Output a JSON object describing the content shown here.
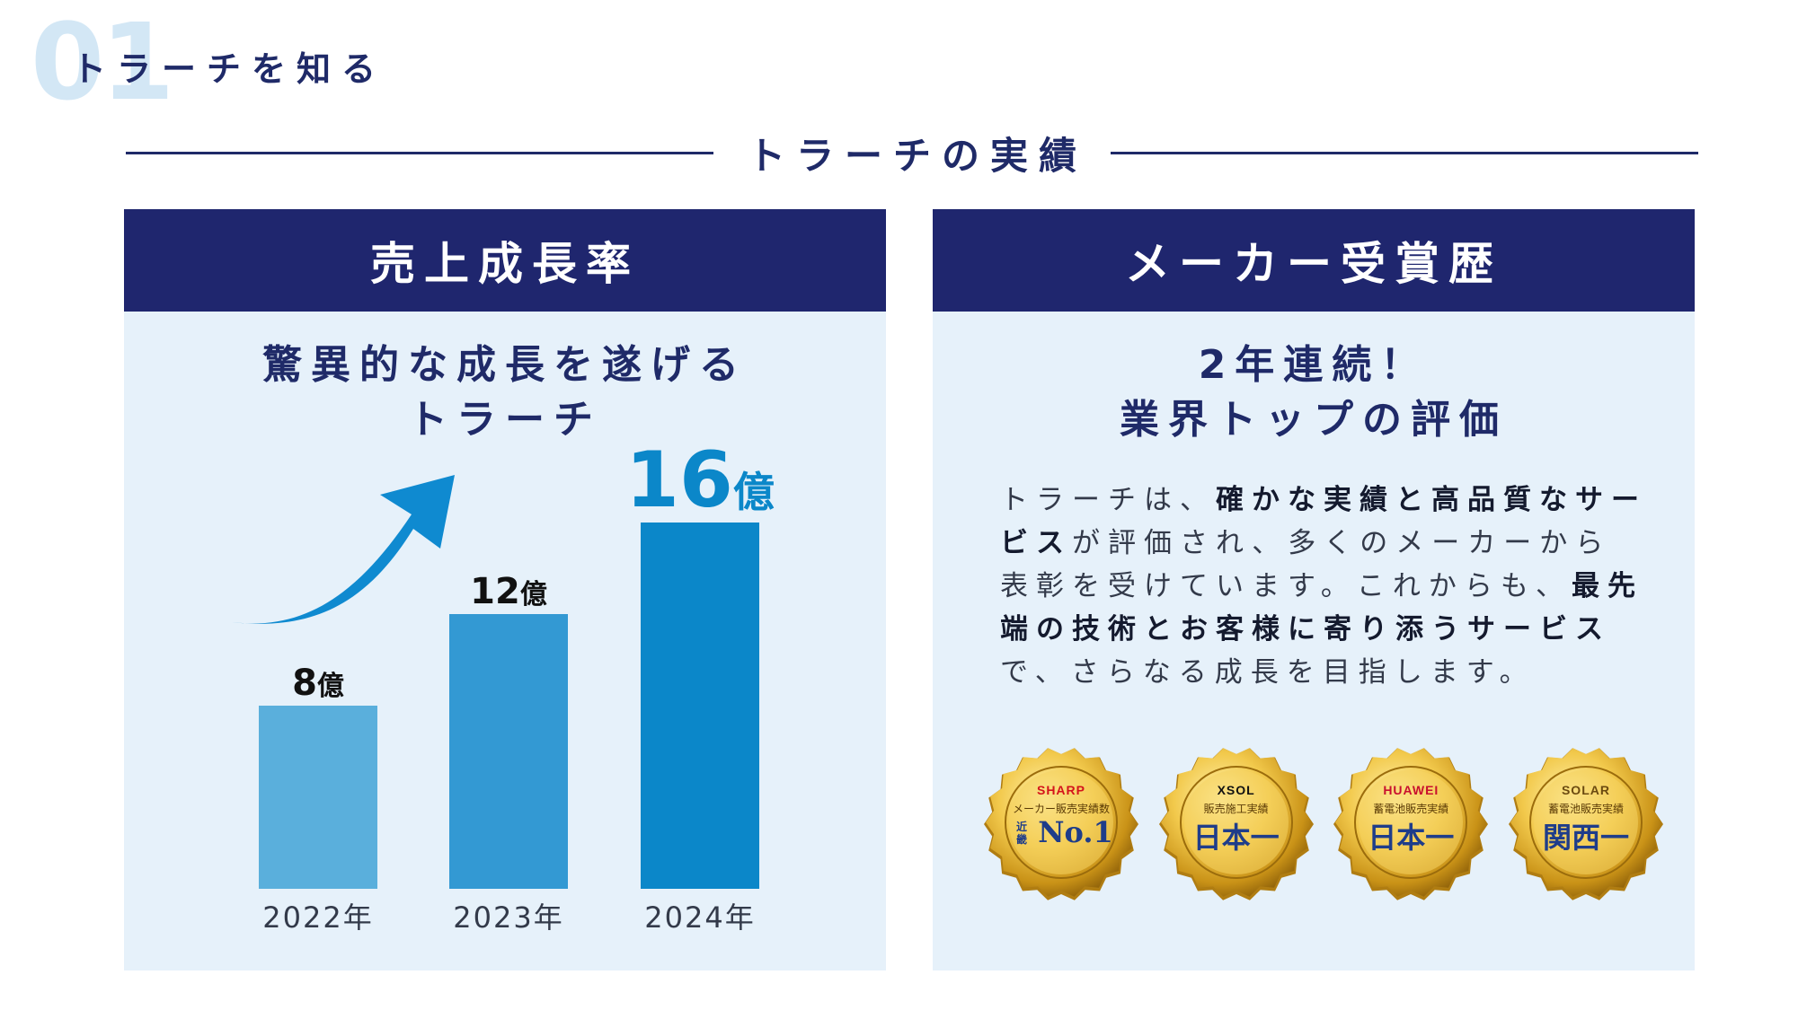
{
  "section": {
    "number": "01",
    "title": "トラーチを知る"
  },
  "main_heading": "トラーチの実績",
  "left_panel": {
    "title": "売上成長率",
    "subtitle_line1": "驚異的な成長を遂げる",
    "subtitle_line2": "トラーチ"
  },
  "chart_data": {
    "type": "bar",
    "categories": [
      "2022年",
      "2023年",
      "2024年"
    ],
    "values": [
      8,
      12,
      16
    ],
    "value_labels": [
      {
        "num": "8",
        "unit": "億"
      },
      {
        "num": "12",
        "unit": "億"
      },
      {
        "num": "16",
        "unit": "億"
      }
    ],
    "colors": [
      "#5aafdc",
      "#3399d3",
      "#0b87c9"
    ],
    "arrow_color": "#0f8ad0",
    "title": "",
    "xlabel": "",
    "ylabel": "",
    "ylim": [
      0,
      16
    ]
  },
  "right_panel": {
    "title": "メーカー受賞歴",
    "subtitle_line1": "2年連続！",
    "subtitle_line2": "業界トップの評価",
    "body_segments": [
      {
        "text": "トラーチは、",
        "bold": false
      },
      {
        "text": "確かな実績と高品質なサービス",
        "bold": true
      },
      {
        "text": "が評価され、多くのメーカーから表彰を受けています。これからも、",
        "bold": false
      },
      {
        "text": "最先端の技術とお客様に寄り添うサービス",
        "bold": true
      },
      {
        "text": "で、さらなる成長を目指します。",
        "bold": false
      }
    ],
    "badges": [
      {
        "brand": "SHARP",
        "brand_color": "#d4131b",
        "caption": "メーカー販売実績数",
        "side": "近畿",
        "rank": "No.1"
      },
      {
        "brand": "XSOL",
        "brand_color": "#111111",
        "caption": "販売施工実績",
        "side": "",
        "rank": "日本一"
      },
      {
        "brand": "HUAWEI",
        "brand_color": "#c8102e",
        "caption": "蓄電池販売実績",
        "side": "",
        "rank": "日本一"
      },
      {
        "brand": "SOLAR",
        "brand_color": "#6b4a10",
        "caption": "蓄電池販売実績",
        "side": "",
        "rank": "関西一"
      }
    ]
  }
}
